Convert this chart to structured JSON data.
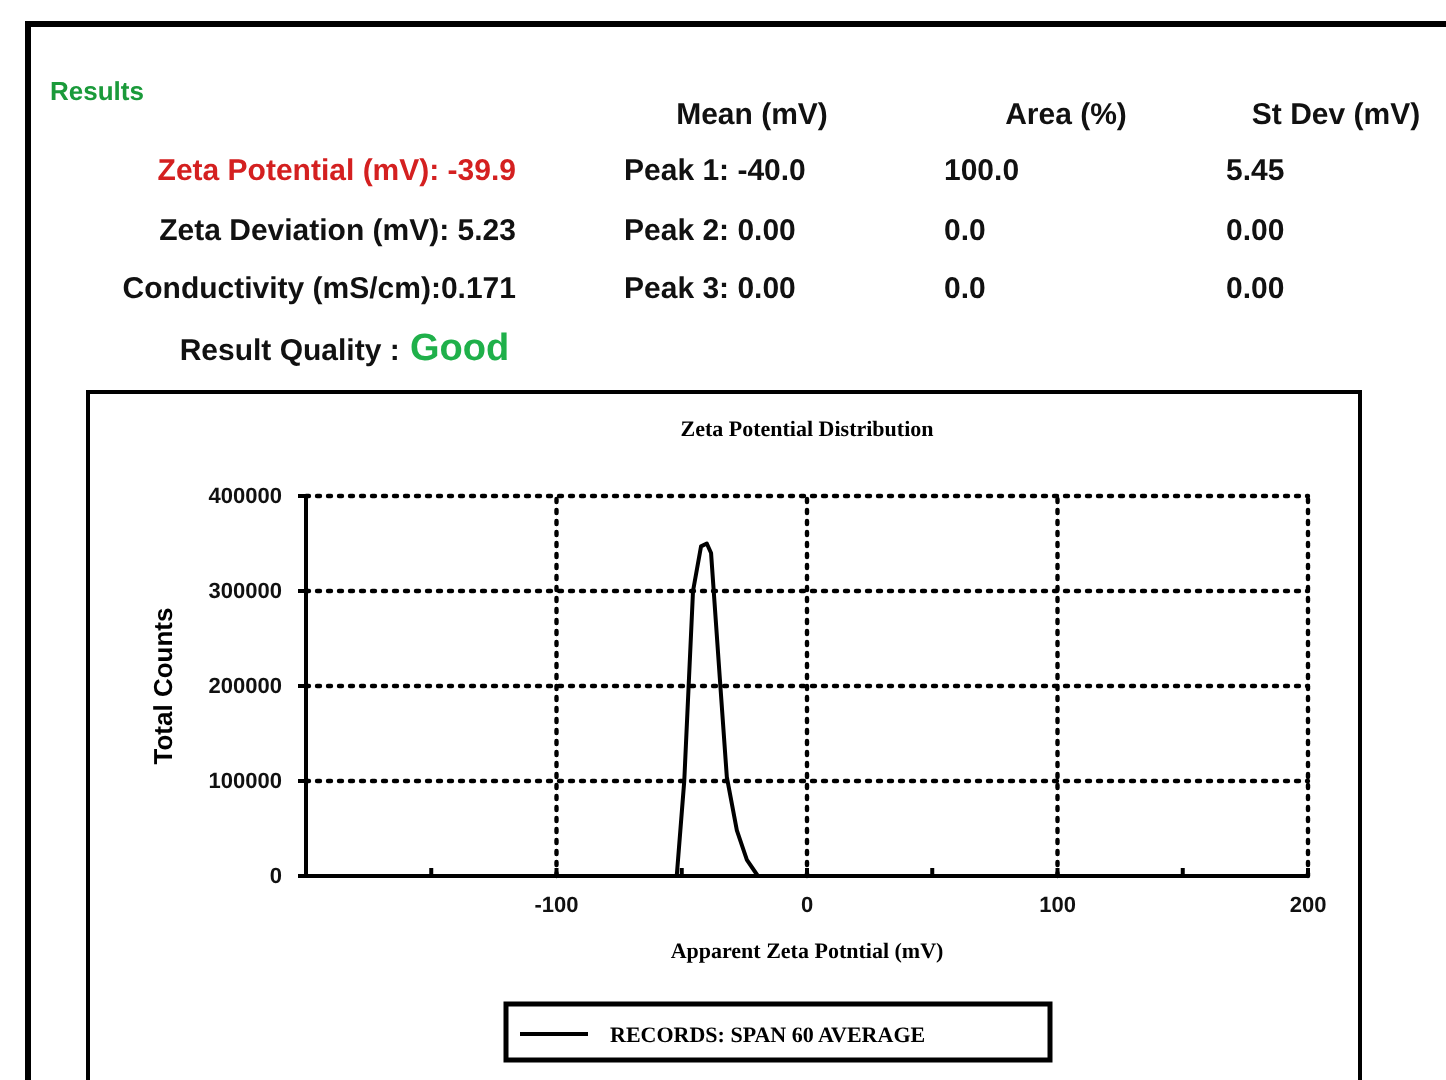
{
  "chart_data": [
    {
      "type": "other",
      "title": "Results",
      "annotations": [
        "Mean (mV)",
        "Area (%)",
        "St Dev (mV)",
        "Zeta Potential (mV): -39.9",
        "Peak 1: -40.0",
        "100.0",
        "5.45",
        "Zeta Deviation (mV): 5.23",
        "Peak 2: 0.00",
        "0.0",
        "0.00",
        "Conductivity (mS/cm):0.171",
        "Peak 3: 0.00",
        "0.0",
        "0.00",
        "Result Quality : ",
        "Good"
      ]
    },
    {
      "type": "line",
      "title": "Zeta Potential Distribution",
      "xlabel": "Apparent Zeta Potntial (mV)",
      "ylabel": "Total Counts",
      "xlim": [
        -200,
        200
      ],
      "xticks": [
        {
          "value": -200,
          "label": null
        },
        {
          "value": -150,
          "label": null
        },
        -100,
        {
          "value": -50,
          "label": null
        },
        0,
        {
          "value": 50,
          "label": null
        },
        100,
        {
          "value": 150,
          "label": null
        },
        200
      ],
      "ylim": [
        0,
        400000
      ],
      "yticks": [
        0,
        100000,
        200000,
        300000,
        400000
      ],
      "grid": true,
      "legend": "bottom",
      "line_style": "solid",
      "series": [
        {
          "name": "RECORDS: SPAN 60 AVERAGE",
          "color": "#000000",
          "x": [
            -200,
            -52,
            -49,
            -45.5,
            -42.3,
            -40,
            -38.3,
            -34.8,
            -32,
            -28,
            -24,
            -19.6,
            200
          ],
          "values": [
            0,
            0,
            100000,
            300000,
            347000,
            350000,
            340000,
            208000,
            104000,
            48000,
            17000,
            0,
            0
          ]
        }
      ]
    }
  ]
}
